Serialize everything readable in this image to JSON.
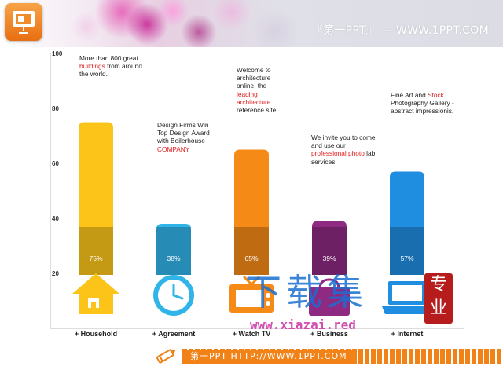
{
  "header": {
    "logo_icon": "presentation-icon",
    "site_text": "『第一PPT』 — WWW.1PPT.COM"
  },
  "chart_data": {
    "type": "bar",
    "categories": [
      "+ Household",
      "+ Agreement",
      "+ Watch TV",
      "+ Business",
      "+ Internet"
    ],
    "values": [
      75,
      38,
      65,
      39,
      57
    ],
    "value_labels": [
      "75%",
      "38%",
      "65%",
      "39%",
      "57%"
    ],
    "ylim": [
      0,
      100
    ],
    "yticks": [
      20,
      40,
      60,
      80,
      100
    ],
    "grid": false,
    "colors": [
      "#fcc419",
      "#31b4e8",
      "#f58a16",
      "#8e2a82",
      "#1f8de0"
    ],
    "icons": [
      "house-icon",
      "clock-icon",
      "tv-icon",
      "shopping-bag-icon",
      "laptop-icon"
    ],
    "annotations": [
      {
        "text": "More than 800 great ",
        "highlight": "buildings",
        "after": " from around the world."
      },
      {
        "text": "Design Firms Win Top Design Award with Boilerhouse ",
        "highlight": "COMPANY",
        "after": ""
      },
      {
        "text": "Welcome to architecture online, the ",
        "highlight": "leading architecture",
        "after": " reference site."
      },
      {
        "text": "We invite you to come and use our ",
        "highlight": "professional photo",
        "after": " lab services."
      },
      {
        "text": "Fine Art and ",
        "highlight": "Stock",
        "after": " Photography Gallery - abstract impressionis."
      }
    ]
  },
  "footer": {
    "text": "第一PPT HTTP://WWW.1PPT.COM"
  },
  "watermark": {
    "chinese": "下载集",
    "url": "www.xiazai.red",
    "seal": "专业"
  }
}
